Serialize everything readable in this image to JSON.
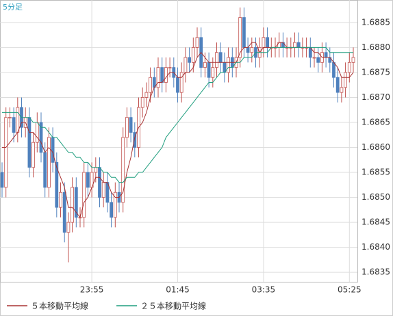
{
  "chart_data": {
    "type": "candlestick",
    "title": "5分足",
    "categories": [
      null,
      null,
      null,
      null,
      null,
      null,
      null,
      null,
      null,
      null,
      null,
      null,
      null,
      null,
      null,
      null,
      null,
      null,
      null,
      null,
      null,
      null,
      null,
      "23:55",
      null,
      null,
      null,
      null,
      null,
      null,
      null,
      null,
      null,
      null,
      null,
      null,
      null,
      null,
      null,
      null,
      null,
      null,
      null,
      null,
      null,
      "01:45",
      null,
      null,
      null,
      null,
      null,
      null,
      null,
      null,
      null,
      null,
      null,
      null,
      null,
      null,
      null,
      null,
      null,
      null,
      null,
      null,
      null,
      "03:35",
      null,
      null,
      null,
      null,
      null,
      null,
      null,
      null,
      null,
      null,
      null,
      null,
      null,
      null,
      null,
      null,
      null,
      null,
      null,
      null,
      null,
      "05:25",
      null
    ],
    "open": [
      1.6855,
      1.6852,
      1.6866,
      1.6866,
      1.6863,
      1.6868,
      1.6864,
      1.6866,
      1.6856,
      1.6861,
      1.6865,
      1.6859,
      1.6852,
      1.6862,
      1.6857,
      1.6848,
      1.6851,
      1.6843,
      1.6845,
      1.6852,
      1.6846,
      1.6846,
      1.6855,
      1.6852,
      1.6855,
      1.6856,
      1.685,
      1.6853,
      1.6849,
      1.6846,
      1.6851,
      1.6849,
      1.6862,
      1.6866,
      1.6863,
      1.686,
      1.6868,
      1.687,
      1.6871,
      1.6874,
      1.6872,
      1.6876,
      1.6873,
      1.6876,
      1.6876,
      1.6874,
      1.6871,
      1.6875,
      1.6878,
      1.6877,
      1.688,
      1.6882,
      1.6876,
      1.6877,
      1.6874,
      1.6876,
      1.6879,
      1.6877,
      1.6875,
      1.6878,
      1.6876,
      1.6878,
      1.6886,
      1.688,
      1.6879,
      1.688,
      1.6878,
      1.688,
      1.6882,
      1.688,
      1.688,
      1.688,
      1.6881,
      1.688,
      1.688,
      1.688,
      1.6881,
      1.688,
      1.688,
      1.688,
      1.6878,
      1.6878,
      1.6877,
      1.6879,
      1.6878,
      1.6877,
      1.6874,
      1.6871,
      1.6872,
      1.6875,
      1.6877
    ],
    "high": [
      1.6857,
      1.6868,
      1.6868,
      1.6868,
      1.687,
      1.687,
      1.6868,
      1.6868,
      1.6863,
      1.6867,
      1.6867,
      1.6861,
      1.6864,
      1.6864,
      1.6859,
      1.6853,
      1.6853,
      1.6847,
      1.6854,
      1.6854,
      1.6848,
      1.6857,
      1.6857,
      1.6857,
      1.6858,
      1.6858,
      1.6855,
      1.6855,
      1.6851,
      1.6853,
      1.6853,
      1.6864,
      1.6868,
      1.6868,
      1.6865,
      1.687,
      1.6872,
      1.6873,
      1.6876,
      1.6876,
      1.6878,
      1.6878,
      1.6878,
      1.6878,
      1.6878,
      1.6876,
      1.6877,
      1.688,
      1.688,
      1.6882,
      1.6884,
      1.6884,
      1.6879,
      1.6879,
      1.6878,
      1.6881,
      1.6881,
      1.6879,
      1.688,
      1.688,
      1.688,
      1.6888,
      1.6888,
      1.6882,
      1.6882,
      1.6882,
      1.6882,
      1.6884,
      1.6884,
      1.6882,
      1.6882,
      1.6883,
      1.6883,
      1.6882,
      1.6882,
      1.6883,
      1.6883,
      1.6882,
      1.6882,
      1.6882,
      1.688,
      1.688,
      1.6881,
      1.6881,
      1.688,
      1.6879,
      1.6876,
      1.6874,
      1.6877,
      1.6879,
      1.688
    ],
    "low": [
      1.685,
      1.685,
      1.6864,
      1.6861,
      1.6861,
      1.6862,
      1.6862,
      1.6854,
      1.6854,
      1.6859,
      1.6857,
      1.685,
      1.685,
      1.6855,
      1.6846,
      1.6846,
      1.6841,
      1.6837,
      1.6843,
      1.6844,
      1.6844,
      1.6844,
      1.685,
      1.685,
      1.6853,
      1.6848,
      1.6848,
      1.6847,
      1.6844,
      1.6844,
      1.6847,
      1.6847,
      1.686,
      1.6861,
      1.6858,
      1.6858,
      1.6866,
      1.6868,
      1.6869,
      1.687,
      1.687,
      1.6871,
      1.6871,
      1.6874,
      1.6872,
      1.6869,
      1.6869,
      1.6873,
      1.6875,
      1.6875,
      1.6878,
      1.6874,
      1.6874,
      1.6872,
      1.6872,
      1.6874,
      1.6875,
      1.6873,
      1.6873,
      1.6874,
      1.6874,
      1.6876,
      1.6878,
      1.6877,
      1.6877,
      1.6876,
      1.6876,
      1.6878,
      1.6878,
      1.6878,
      1.6878,
      1.6878,
      1.6878,
      1.6878,
      1.6878,
      1.6878,
      1.6878,
      1.6878,
      1.6878,
      1.6876,
      1.6876,
      1.6875,
      1.6875,
      1.6876,
      1.6875,
      1.6872,
      1.6869,
      1.6869,
      1.687,
      1.6873,
      1.6875
    ],
    "close": [
      1.6852,
      1.6866,
      1.6866,
      1.6863,
      1.6868,
      1.6864,
      1.6866,
      1.6856,
      1.6861,
      1.6865,
      1.6859,
      1.6852,
      1.6862,
      1.6857,
      1.6848,
      1.6851,
      1.6843,
      1.6845,
      1.6852,
      1.6846,
      1.6846,
      1.6855,
      1.6852,
      1.6855,
      1.6856,
      1.685,
      1.6853,
      1.6849,
      1.6846,
      1.6851,
      1.6849,
      1.6862,
      1.6866,
      1.6863,
      1.686,
      1.6868,
      1.687,
      1.6871,
      1.6874,
      1.6872,
      1.6876,
      1.6873,
      1.6876,
      1.6876,
      1.6874,
      1.6871,
      1.6875,
      1.6878,
      1.6877,
      1.688,
      1.6882,
      1.6876,
      1.6877,
      1.6874,
      1.6876,
      1.6879,
      1.6877,
      1.6875,
      1.6878,
      1.6876,
      1.6878,
      1.6886,
      1.688,
      1.6879,
      1.688,
      1.6878,
      1.688,
      1.6882,
      1.688,
      1.688,
      1.688,
      1.6881,
      1.688,
      1.688,
      1.688,
      1.6881,
      1.688,
      1.688,
      1.688,
      1.6878,
      1.6878,
      1.6877,
      1.6879,
      1.6878,
      1.6877,
      1.6874,
      1.6871,
      1.6872,
      1.6875,
      1.6877,
      1.6878
    ],
    "up_color": "#c0504d",
    "down_color": "#4f81bd",
    "series": [
      {
        "name": "５本移動平均線",
        "color": "#a83232",
        "values": [
          1.686,
          1.686,
          1.6861,
          1.6862,
          1.6863,
          1.6865,
          1.6865,
          1.6863,
          1.6863,
          1.6862,
          1.6861,
          1.6859,
          1.686,
          1.6859,
          1.6856,
          1.6854,
          1.6852,
          1.6848,
          1.6848,
          1.6847,
          1.6846,
          1.6849,
          1.685,
          1.6852,
          1.6854,
          1.6854,
          1.6853,
          1.6853,
          1.6851,
          1.685,
          1.685,
          1.6851,
          1.6855,
          1.6858,
          1.6862,
          1.6864,
          1.6865,
          1.6867,
          1.687,
          1.6872,
          1.6873,
          1.6873,
          1.6874,
          1.6875,
          1.6875,
          1.6874,
          1.6874,
          1.6875,
          1.6875,
          1.6876,
          1.6878,
          1.6879,
          1.6878,
          1.6877,
          1.6877,
          1.6877,
          1.6877,
          1.6877,
          1.6877,
          1.6877,
          1.6877,
          1.6879,
          1.688,
          1.688,
          1.6881,
          1.6881,
          1.6879,
          1.688,
          1.688,
          1.688,
          1.688,
          1.6881,
          1.6881,
          1.688,
          1.688,
          1.688,
          1.688,
          1.688,
          1.688,
          1.688,
          1.6879,
          1.6879,
          1.6878,
          1.6878,
          1.6878,
          1.6877,
          1.6876,
          1.6874,
          1.6874,
          1.6874,
          1.6875
        ]
      },
      {
        "name": "２５本移動平均線",
        "color": "#1f9e7e",
        "values": [
          1.6867,
          1.6867,
          1.6867,
          1.6867,
          1.6867,
          1.6866,
          1.6866,
          1.6866,
          1.6865,
          1.6865,
          1.6864,
          1.6864,
          1.6863,
          1.6862,
          1.6862,
          1.6861,
          1.686,
          1.6859,
          1.6859,
          1.6858,
          1.6858,
          1.6857,
          1.6857,
          1.6856,
          1.6856,
          1.6856,
          1.6855,
          1.6855,
          1.6854,
          1.6854,
          1.6853,
          1.6853,
          1.6854,
          1.6854,
          1.6854,
          1.6855,
          1.6855,
          1.6856,
          1.6857,
          1.6858,
          1.6859,
          1.686,
          1.6862,
          1.6863,
          1.6864,
          1.6865,
          1.6866,
          1.6867,
          1.6868,
          1.6869,
          1.687,
          1.6871,
          1.6872,
          1.6873,
          1.6873,
          1.6874,
          1.6875,
          1.6875,
          1.6876,
          1.6876,
          1.6877,
          1.6877,
          1.6878,
          1.6878,
          1.6878,
          1.6879,
          1.6879,
          1.6879,
          1.6879,
          1.688,
          1.688,
          1.688,
          1.688,
          1.688,
          1.688,
          1.688,
          1.688,
          1.688,
          1.688,
          1.688,
          1.688,
          1.688,
          1.688,
          1.688,
          1.6879,
          1.6879,
          1.6879,
          1.6879,
          1.6879,
          1.6879,
          1.6879
        ]
      }
    ],
    "ylim": [
      1.68331,
      1.68895
    ],
    "yticks": [
      1.6835,
      {
        "value": 1.684,
        "label": "1.6840"
      },
      1.6845,
      {
        "value": 1.685,
        "label": "1.6850"
      },
      1.6855,
      {
        "value": 1.686,
        "label": "1.6860"
      },
      1.6865,
      {
        "value": 1.687,
        "label": "1.6870"
      },
      1.6875,
      {
        "value": 1.688,
        "label": "1.6880"
      },
      1.6885
    ],
    "grid": true
  }
}
